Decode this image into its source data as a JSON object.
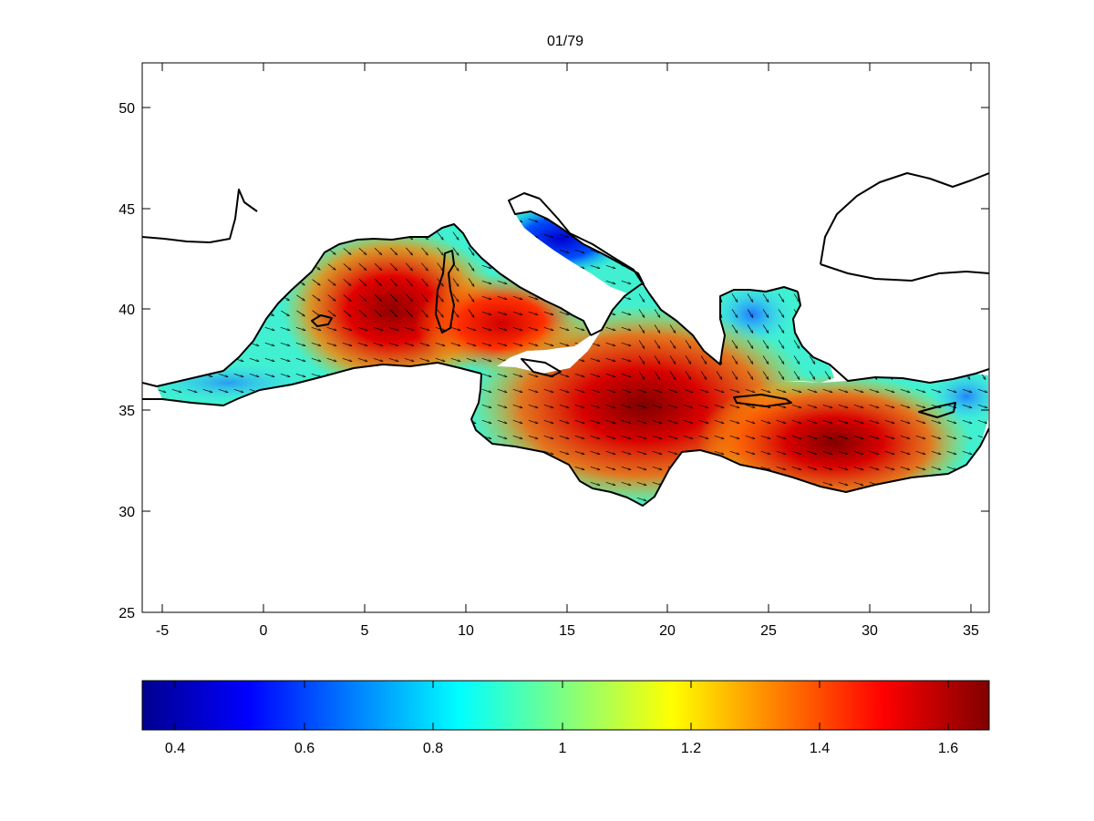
{
  "map": {
    "title": "01/79",
    "x_ticks": [
      "-5",
      "0",
      "5",
      "10",
      "15",
      "20",
      "25",
      "30",
      "35"
    ],
    "y_ticks": [
      "50",
      "45",
      "40",
      "35",
      "30",
      "25"
    ],
    "x_range": [
      -5.6,
      36
    ],
    "y_range": [
      25,
      52.2
    ],
    "coastline_color": "#000000",
    "arrow_color": "#000000"
  },
  "colorbar": {
    "colormap": "jet",
    "range": [
      0.35,
      1.66
    ],
    "tick_labels": [
      "0.4",
      "0.6",
      "0.8",
      "1",
      "1.2",
      "1.4",
      "1.6"
    ]
  },
  "chart_data": {
    "type": "heatmap",
    "title": "01/79",
    "xlabel": "",
    "ylabel": "",
    "xlim": [
      -5.6,
      36
    ],
    "ylim": [
      25,
      52.2
    ],
    "colorbar_range": [
      0.35,
      1.66
    ],
    "grid": false,
    "maxima": [
      {
        "lon": 6.5,
        "lat": 40.5,
        "value": 1.62
      },
      {
        "lon": 12,
        "lat": 39,
        "value": 1.5
      },
      {
        "lon": 19,
        "lat": 35,
        "value": 1.66
      },
      {
        "lon": 28,
        "lat": 33,
        "value": 1.62
      }
    ],
    "minima": [
      {
        "lon": 14.5,
        "lat": 43.5,
        "value": 0.45
      },
      {
        "lon": 25.5,
        "lat": 39.8,
        "value": 0.55
      }
    ]
  }
}
